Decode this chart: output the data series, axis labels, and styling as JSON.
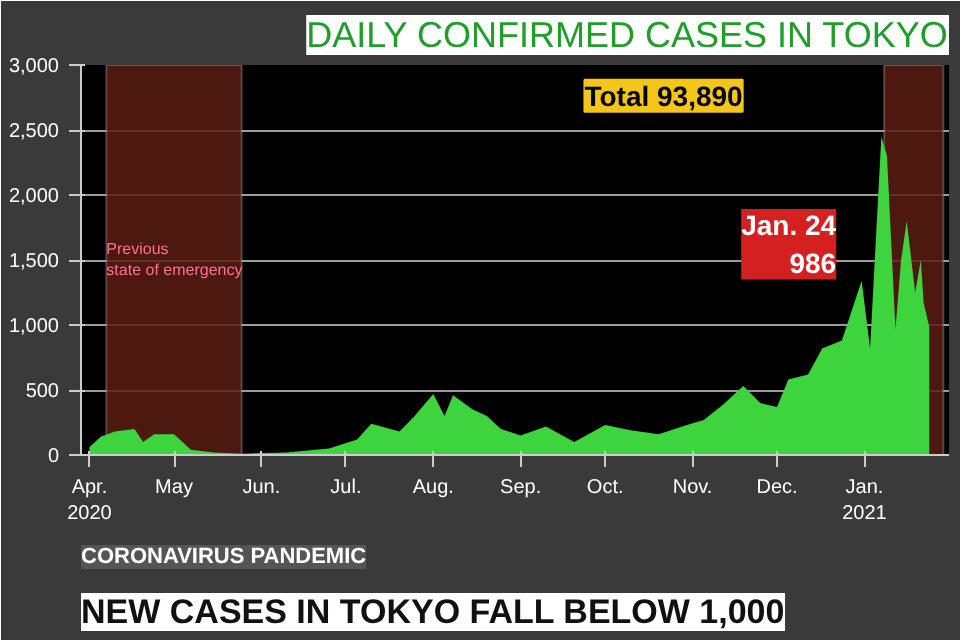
{
  "chart_data": {
    "type": "area",
    "title": "DAILY CONFIRMED CASES IN TOKYO",
    "subtitle": "CORONAVIRUS PANDEMIC",
    "annotations": [
      "NEW CASES IN TOKYO FALL BELOW 1,000",
      "Total 93,890",
      "Jan. 24 986"
    ],
    "x": [
      "2020-04-01",
      "2020-04-05",
      "2020-04-10",
      "2020-04-17",
      "2020-04-20",
      "2020-04-24",
      "2020-05-01",
      "2020-05-07",
      "2020-05-15",
      "2020-05-25",
      "2020-06-10",
      "2020-06-25",
      "2020-07-05",
      "2020-07-10",
      "2020-07-20",
      "2020-07-25",
      "2020-08-01",
      "2020-08-05",
      "2020-08-08",
      "2020-08-15",
      "2020-08-20",
      "2020-08-25",
      "2020-09-01",
      "2020-09-10",
      "2020-09-20",
      "2020-10-01",
      "2020-10-10",
      "2020-10-20",
      "2020-10-30",
      "2020-11-05",
      "2020-11-12",
      "2020-11-19",
      "2020-11-25",
      "2020-12-01",
      "2020-12-05",
      "2020-12-12",
      "2020-12-17",
      "2020-12-24",
      "2020-12-31",
      "2021-01-03",
      "2021-01-07",
      "2021-01-09",
      "2021-01-12",
      "2021-01-14",
      "2021-01-16",
      "2021-01-19",
      "2021-01-21",
      "2021-01-22",
      "2021-01-24"
    ],
    "series": [
      {
        "color": "#3ed43e",
        "values": [
          60,
          140,
          180,
          200,
          100,
          160,
          160,
          40,
          20,
          10,
          20,
          50,
          120,
          240,
          180,
          290,
          470,
          300,
          460,
          350,
          300,
          200,
          150,
          220,
          100,
          230,
          190,
          160,
          230,
          270,
          390,
          530,
          400,
          370,
          580,
          620,
          820,
          880,
          1340,
          820,
          2450,
          2300,
          970,
          1500,
          1800,
          1250,
          1500,
          1170,
          986
        ]
      }
    ],
    "xlim": [
      "2020-03-29",
      "2021-01-31"
    ],
    "xticks": [
      {
        "value": "2020-04-01",
        "label": "Apr.\n2020"
      },
      {
        "value": "2020-05-01",
        "label": "May"
      },
      {
        "value": "2020-06-01",
        "label": "Jun."
      },
      {
        "value": "2020-07-01",
        "label": "Jul."
      },
      {
        "value": "2020-08-01",
        "label": "Aug."
      },
      {
        "value": "2020-09-01",
        "label": "Sep."
      },
      {
        "value": "2020-10-01",
        "label": "Oct."
      },
      {
        "value": "2020-11-01",
        "label": "Nov."
      },
      {
        "value": "2020-12-01",
        "label": "Dec."
      },
      {
        "value": "2021-01-01",
        "label": "Jan.\n2021"
      }
    ],
    "ylim": [
      0,
      3000
    ],
    "yticks": [
      0,
      500,
      {
        "value": 1000,
        "label": "1,000"
      },
      {
        "value": 1500,
        "label": "1,500"
      },
      {
        "value": 2000,
        "label": "2,000"
      },
      {
        "value": 2500,
        "label": "2,500"
      },
      {
        "value": 3000,
        "label": "3,000"
      }
    ],
    "grid": "y",
    "bands": [
      {
        "axis": "x",
        "from": "2020-04-07",
        "to": "2020-05-25",
        "label": "Previous\nstate of emergency",
        "color": "#5a1c12"
      },
      {
        "axis": "x",
        "from": "2021-01-08",
        "to": "2021-01-29",
        "color": "#5a1c12"
      }
    ]
  }
}
